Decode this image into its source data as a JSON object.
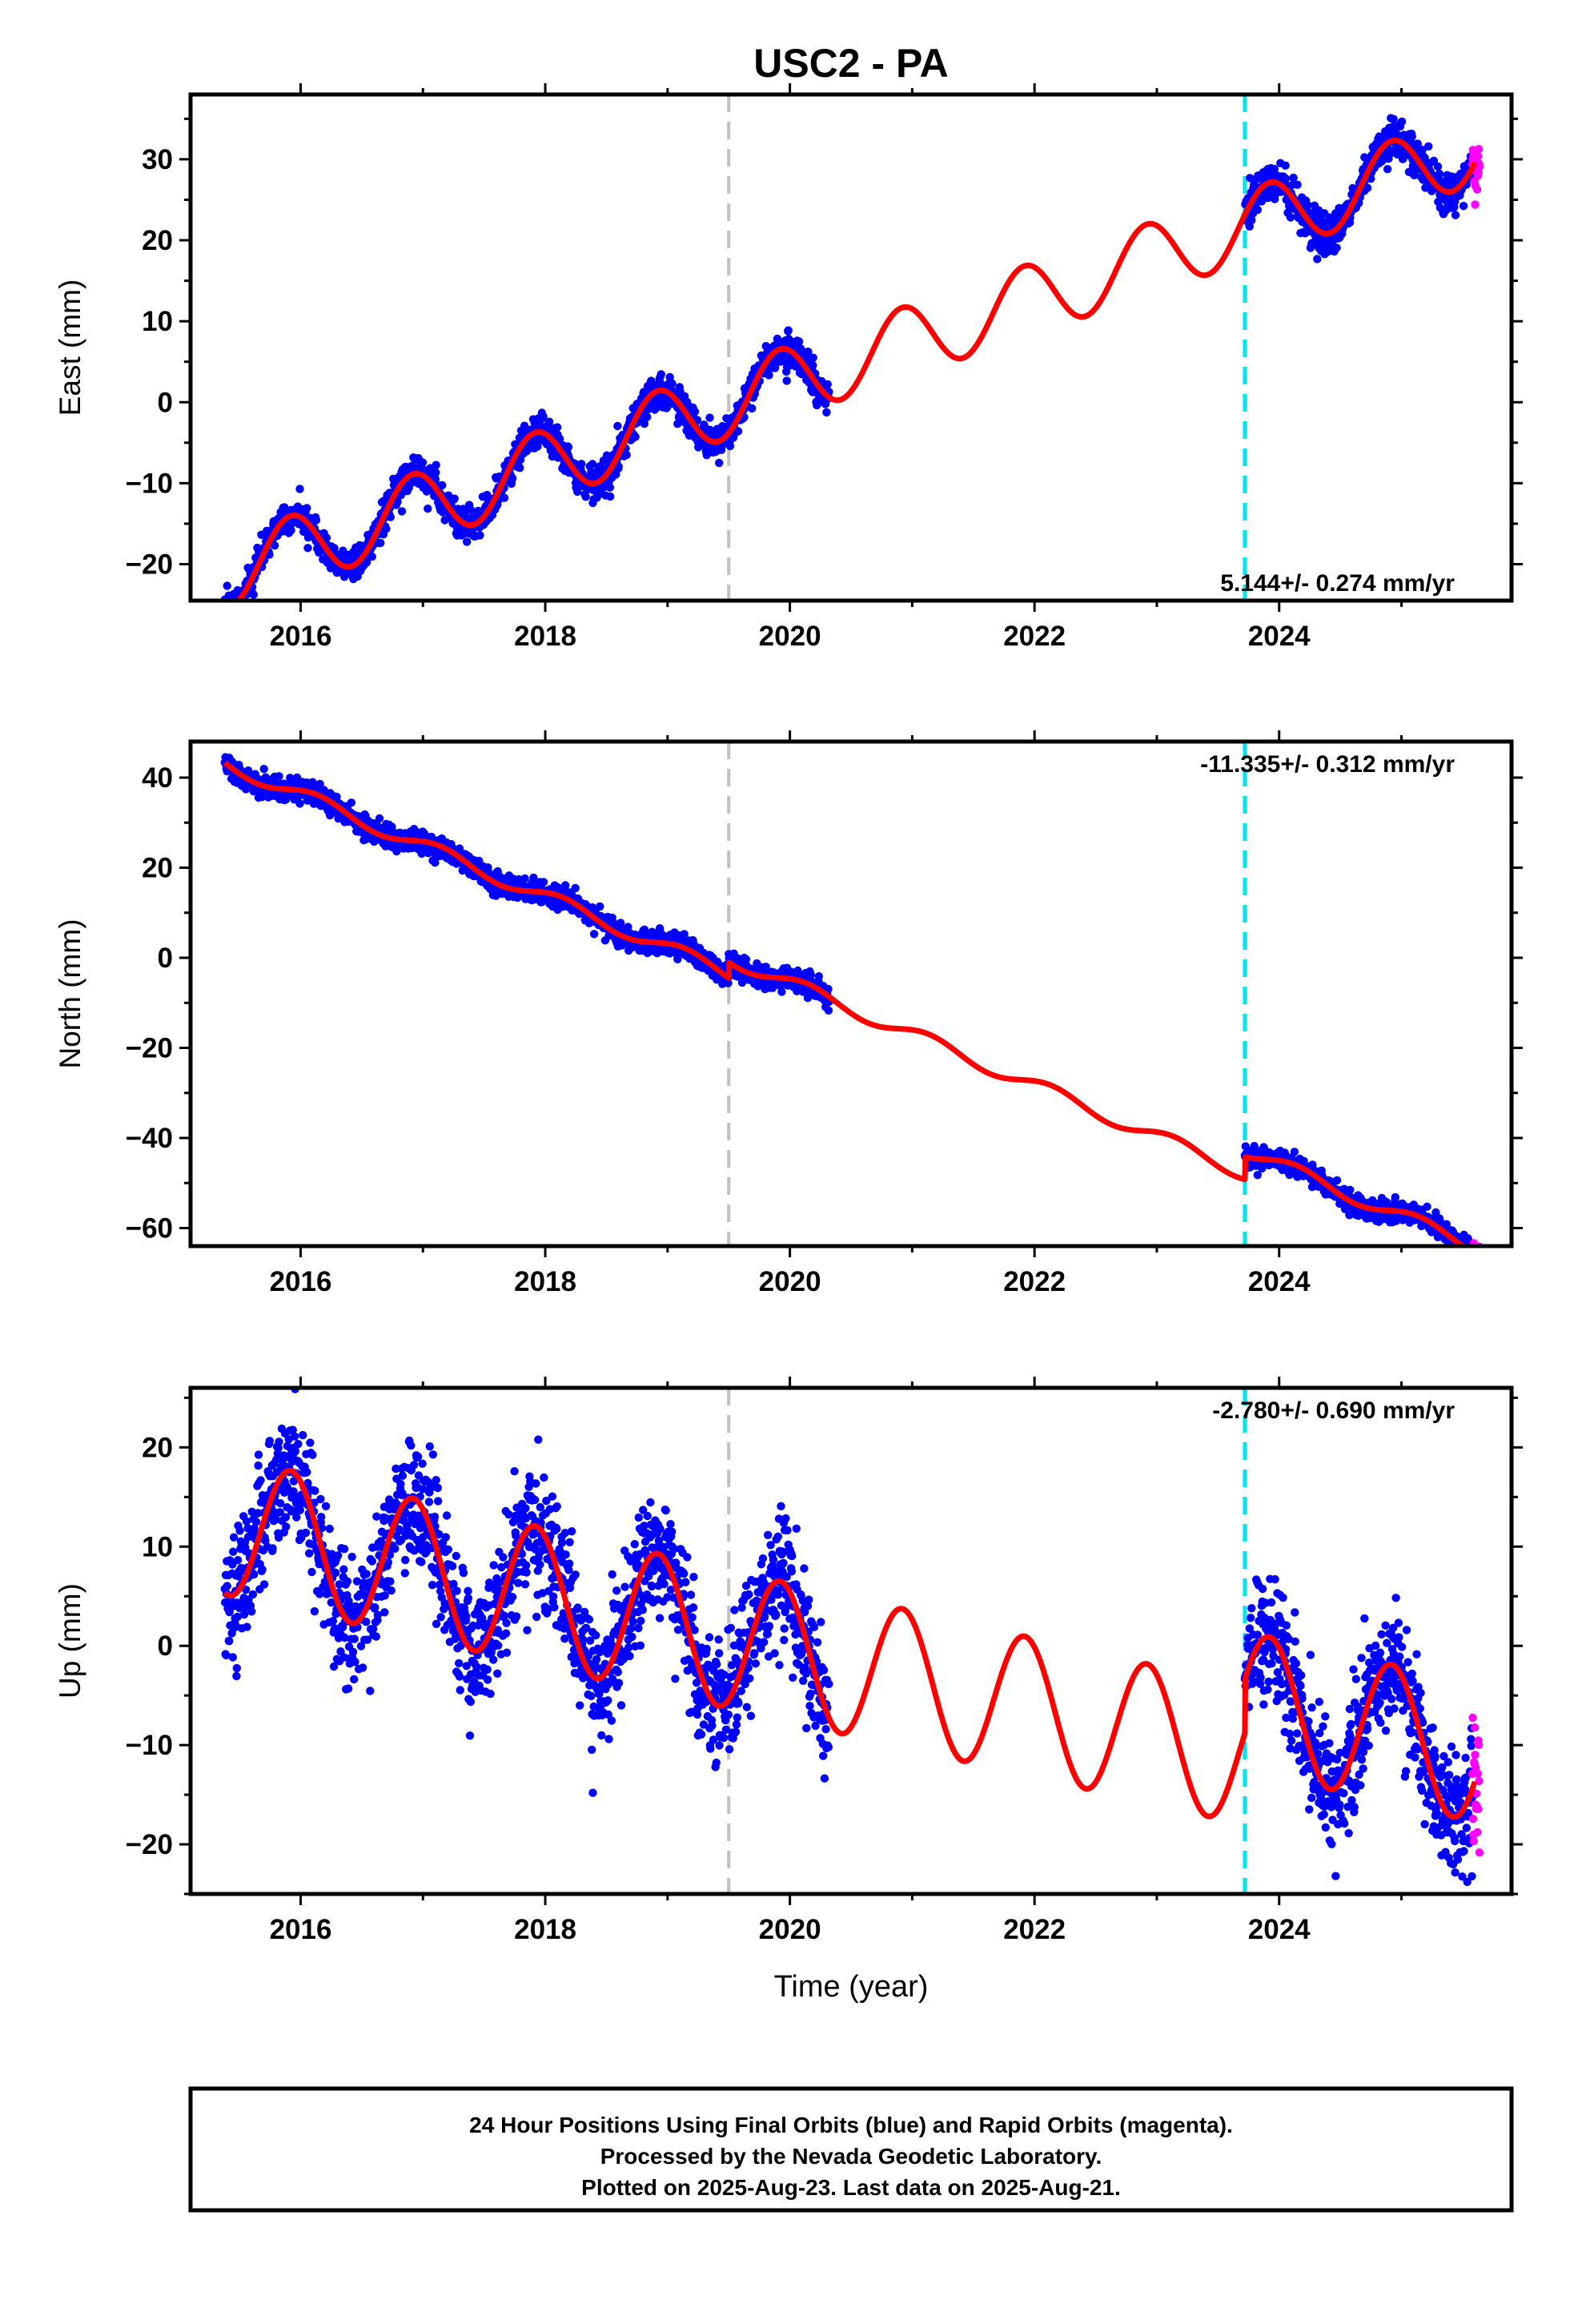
{
  "title": "USC2 - PA",
  "colors": {
    "final": "#0000ff",
    "rapid": "#ff00ff",
    "model": "#ff0000",
    "event_gray": "#c0c0c0",
    "event_cyan": "#00e5ee"
  },
  "chart_data": [
    {
      "type": "scatter",
      "name": "east",
      "ylabel": "East (mm)",
      "xlabel": "",
      "xlim": [
        2015.1,
        2025.9
      ],
      "ylim": [
        -24.5,
        38
      ],
      "xticks": [
        2016,
        2018,
        2020,
        2022,
        2024
      ],
      "xtick_labels": [
        "2016",
        "2018",
        "2020",
        "2022",
        "2024"
      ],
      "yticks": [
        -20,
        -10,
        0,
        10,
        20,
        30
      ],
      "ytick_labels": [
        "−20",
        "−10",
        "0",
        "10",
        "20",
        "30"
      ],
      "velocity_label": "5.144+/- 0.274 mm/yr",
      "velocity_position": "bottom-right",
      "events": [
        {
          "x": 2019.5,
          "style": "gray"
        },
        {
          "x": 2023.72,
          "style": "cyan"
        }
      ],
      "model": {
        "start": 2015.38,
        "end": 2025.6,
        "ref_year": 2019.5,
        "offset": 0.0,
        "rate": 5.144,
        "amp_sin": -2.2,
        "amp_cos": 3.8,
        "steps": [
          {
            "x": 2019.5,
            "dy": 0
          },
          {
            "x": 2023.72,
            "dy": 0
          }
        ]
      },
      "data_segments": [
        {
          "start": 2015.38,
          "end": 2020.32,
          "noise": 1.0
        },
        {
          "start": 2023.72,
          "end": 2025.58,
          "noise": 1.2
        }
      ],
      "rapid_segment": {
        "start": 2025.58,
        "end": 2025.64,
        "noise": 2.0
      }
    },
    {
      "type": "scatter",
      "name": "north",
      "ylabel": "North (mm)",
      "xlabel": "",
      "xlim": [
        2015.1,
        2025.9
      ],
      "ylim": [
        -64,
        48
      ],
      "xticks": [
        2016,
        2018,
        2020,
        2022,
        2024
      ],
      "xtick_labels": [
        "2016",
        "2018",
        "2020",
        "2022",
        "2024"
      ],
      "yticks": [
        -60,
        -40,
        -20,
        0,
        20,
        40
      ],
      "ytick_labels": [
        "−60",
        "−40",
        "−20",
        "0",
        "20",
        "40"
      ],
      "velocity_label": "-11.335+/- 0.312 mm/yr",
      "velocity_position": "top-right",
      "events": [
        {
          "x": 2019.5,
          "style": "gray"
        },
        {
          "x": 2023.72,
          "style": "cyan"
        }
      ],
      "model": {
        "start": 2015.38,
        "end": 2025.6,
        "ref_year": 2019.5,
        "offset": -3.5,
        "rate": -11.335,
        "amp_sin": 1.2,
        "amp_cos": 1.0,
        "steps": [
          {
            "x": 2019.5,
            "dy": 3.5
          },
          {
            "x": 2023.72,
            "dy": 5.0
          }
        ]
      },
      "data_segments": [
        {
          "start": 2015.38,
          "end": 2020.32,
          "noise": 1.2
        },
        {
          "start": 2023.72,
          "end": 2025.58,
          "noise": 1.2
        }
      ],
      "rapid_segment": {
        "start": 2025.58,
        "end": 2025.64,
        "noise": 1.6
      }
    },
    {
      "type": "scatter",
      "name": "up",
      "ylabel": "Up (mm)",
      "xlabel": "Time (year)",
      "xlim": [
        2015.1,
        2025.9
      ],
      "ylim": [
        -25,
        26
      ],
      "xticks": [
        2016,
        2018,
        2020,
        2022,
        2024
      ],
      "xtick_labels": [
        "2016",
        "2018",
        "2020",
        "2022",
        "2024"
      ],
      "yticks": [
        -20,
        -10,
        0,
        10,
        20
      ],
      "ytick_labels": [
        "−20",
        "−10",
        "0",
        "10",
        "20"
      ],
      "velocity_label": "-2.780+/- 0.690 mm/yr",
      "velocity_position": "top-right",
      "events": [
        {
          "x": 2019.5,
          "style": "gray"
        },
        {
          "x": 2023.72,
          "style": "cyan"
        }
      ],
      "model": {
        "start": 2015.38,
        "end": 2025.6,
        "ref_year": 2019.5,
        "offset": 0.7,
        "rate": -2.78,
        "amp_sin": -3.4,
        "amp_cos": 6.1,
        "steps": [
          {
            "x": 2019.5,
            "dy": 0
          },
          {
            "x": 2023.72,
            "dy": 5.5
          }
        ]
      },
      "data_segments": [
        {
          "start": 2015.38,
          "end": 2020.32,
          "noise": 3.0
        },
        {
          "start": 2023.72,
          "end": 2025.58,
          "noise": 3.0
        }
      ],
      "rapid_segment": {
        "start": 2025.58,
        "end": 2025.64,
        "noise": 5.0
      }
    }
  ],
  "footer": {
    "line1": "24 Hour Positions Using Final Orbits (blue) and Rapid Orbits (magenta).",
    "line2": "Processed by the Nevada Geodetic Laboratory.",
    "line3": "Plotted on 2025-Aug-23. Last data on 2025-Aug-21."
  }
}
